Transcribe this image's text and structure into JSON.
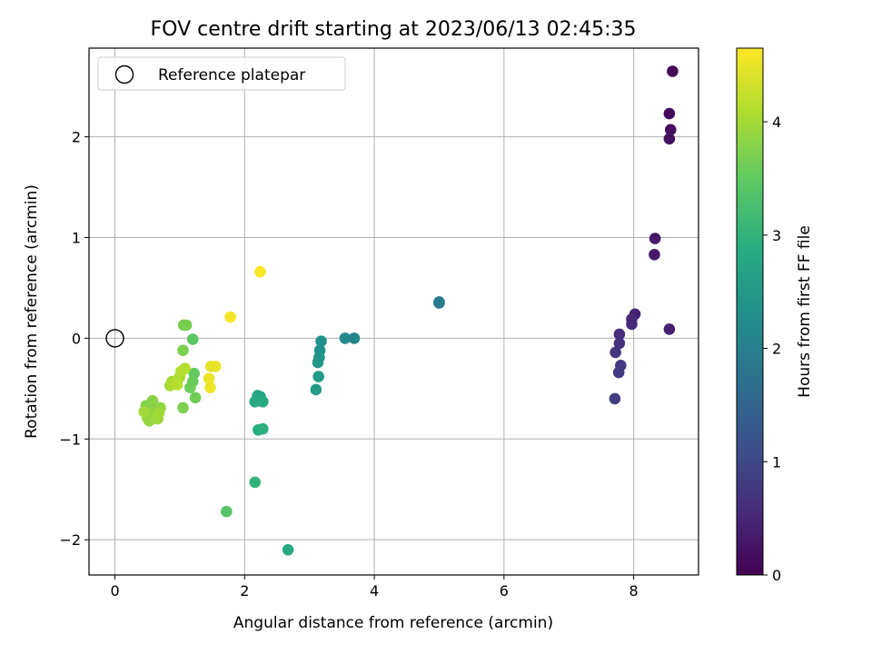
{
  "chart_data": {
    "type": "scatter",
    "title": "FOV centre drift starting at 2023/06/13 02:45:35",
    "xlabel": "Angular distance from reference (arcmin)",
    "ylabel": "Rotation from reference (arcmin)",
    "xlim": [
      -0.4,
      9.0
    ],
    "ylim": [
      -2.35,
      2.88
    ],
    "xticks": [
      0,
      2,
      4,
      6,
      8
    ],
    "xtick_labels": [
      "0",
      "2",
      "4",
      "6",
      "8"
    ],
    "yticks": [
      -2,
      -1,
      0,
      1,
      2
    ],
    "ytick_labels": [
      "−2",
      "−1",
      "0",
      "1",
      "2"
    ],
    "grid": true,
    "legend": {
      "placement": "upper-left",
      "entries": [
        {
          "label": "Reference platepar",
          "marker": "open-circle",
          "x": 0,
          "y": 0
        }
      ]
    },
    "colorbar": {
      "label": "Hours from first FF file",
      "colormap": "viridis",
      "range": [
        0,
        4.65
      ],
      "ticks": [
        0,
        1,
        2,
        3,
        4
      ],
      "tick_labels": [
        "0",
        "1",
        "2",
        "3",
        "4"
      ]
    },
    "points": [
      {
        "x": 8.6,
        "y": 2.65,
        "hours": 0.05
      },
      {
        "x": 8.55,
        "y": 2.23,
        "hours": 0.1
      },
      {
        "x": 8.57,
        "y": 2.07,
        "hours": 0.15
      },
      {
        "x": 8.55,
        "y": 1.98,
        "hours": 0.2
      },
      {
        "x": 8.33,
        "y": 0.99,
        "hours": 0.3
      },
      {
        "x": 8.32,
        "y": 0.83,
        "hours": 0.35
      },
      {
        "x": 8.55,
        "y": 0.09,
        "hours": 0.4
      },
      {
        "x": 8.02,
        "y": 0.24,
        "hours": 0.45
      },
      {
        "x": 7.97,
        "y": 0.19,
        "hours": 0.5
      },
      {
        "x": 7.97,
        "y": 0.14,
        "hours": 0.55
      },
      {
        "x": 7.78,
        "y": 0.04,
        "hours": 0.6
      },
      {
        "x": 7.78,
        "y": -0.05,
        "hours": 0.65
      },
      {
        "x": 7.72,
        "y": -0.14,
        "hours": 0.7
      },
      {
        "x": 7.8,
        "y": -0.27,
        "hours": 0.75
      },
      {
        "x": 7.77,
        "y": -0.34,
        "hours": 0.8
      },
      {
        "x": 7.71,
        "y": -0.6,
        "hours": 0.85
      },
      {
        "x": 5.0,
        "y": 0.35,
        "hours": 1.85
      },
      {
        "x": 5.0,
        "y": 0.36,
        "hours": 1.9
      },
      {
        "x": 3.69,
        "y": 0.0,
        "hours": 2.1
      },
      {
        "x": 3.55,
        "y": 0.0,
        "hours": 2.15
      },
      {
        "x": 3.18,
        "y": -0.03,
        "hours": 2.3
      },
      {
        "x": 3.16,
        "y": -0.12,
        "hours": 2.35
      },
      {
        "x": 3.15,
        "y": -0.19,
        "hours": 2.4
      },
      {
        "x": 3.13,
        "y": -0.24,
        "hours": 2.45
      },
      {
        "x": 3.14,
        "y": -0.38,
        "hours": 2.5
      },
      {
        "x": 3.1,
        "y": -0.51,
        "hours": 2.55
      },
      {
        "x": 2.2,
        "y": -0.57,
        "hours": 2.7
      },
      {
        "x": 2.24,
        "y": -0.58,
        "hours": 2.75
      },
      {
        "x": 2.16,
        "y": -0.63,
        "hours": 2.8
      },
      {
        "x": 2.28,
        "y": -0.63,
        "hours": 2.85
      },
      {
        "x": 2.21,
        "y": -0.91,
        "hours": 2.9
      },
      {
        "x": 2.28,
        "y": -0.9,
        "hours": 2.95
      },
      {
        "x": 2.16,
        "y": -1.43,
        "hours": 3.0
      },
      {
        "x": 2.67,
        "y": -2.1,
        "hours": 2.8
      },
      {
        "x": 1.72,
        "y": -1.72,
        "hours": 3.4
      },
      {
        "x": 1.2,
        "y": -0.01,
        "hours": 3.45
      },
      {
        "x": 1.22,
        "y": -0.35,
        "hours": 3.5
      },
      {
        "x": 1.2,
        "y": -0.43,
        "hours": 3.55
      },
      {
        "x": 1.16,
        "y": -0.49,
        "hours": 3.6
      },
      {
        "x": 1.24,
        "y": -0.59,
        "hours": 3.62
      },
      {
        "x": 1.06,
        "y": 0.13,
        "hours": 3.65
      },
      {
        "x": 1.1,
        "y": 0.13,
        "hours": 3.68
      },
      {
        "x": 1.05,
        "y": -0.12,
        "hours": 3.7
      },
      {
        "x": 1.05,
        "y": -0.69,
        "hours": 3.72
      },
      {
        "x": 0.48,
        "y": -0.67,
        "hours": 3.75
      },
      {
        "x": 0.52,
        "y": -0.7,
        "hours": 3.78
      },
      {
        "x": 0.58,
        "y": -0.62,
        "hours": 3.8
      },
      {
        "x": 0.62,
        "y": -0.72,
        "hours": 3.82
      },
      {
        "x": 0.7,
        "y": -0.69,
        "hours": 3.84
      },
      {
        "x": 0.55,
        "y": -0.75,
        "hours": 3.86
      },
      {
        "x": 0.5,
        "y": -0.79,
        "hours": 3.88
      },
      {
        "x": 0.53,
        "y": -0.82,
        "hours": 3.9
      },
      {
        "x": 0.62,
        "y": -0.78,
        "hours": 3.92
      },
      {
        "x": 0.66,
        "y": -0.8,
        "hours": 3.94
      },
      {
        "x": 0.68,
        "y": -0.74,
        "hours": 3.96
      },
      {
        "x": 0.45,
        "y": -0.73,
        "hours": 3.98
      },
      {
        "x": 0.88,
        "y": -0.43,
        "hours": 4.0
      },
      {
        "x": 0.85,
        "y": -0.47,
        "hours": 4.02
      },
      {
        "x": 0.92,
        "y": -0.45,
        "hours": 4.04
      },
      {
        "x": 0.98,
        "y": -0.4,
        "hours": 4.06
      },
      {
        "x": 1.0,
        "y": -0.38,
        "hours": 4.08
      },
      {
        "x": 1.02,
        "y": -0.33,
        "hours": 4.1
      },
      {
        "x": 1.08,
        "y": -0.3,
        "hours": 4.12
      },
      {
        "x": 0.96,
        "y": -0.46,
        "hours": 4.14
      },
      {
        "x": 1.48,
        "y": -0.28,
        "hours": 4.45
      },
      {
        "x": 1.55,
        "y": -0.28,
        "hours": 4.5
      },
      {
        "x": 1.45,
        "y": -0.4,
        "hours": 4.52
      },
      {
        "x": 1.47,
        "y": -0.49,
        "hours": 4.55
      },
      {
        "x": 1.78,
        "y": 0.21,
        "hours": 4.58
      },
      {
        "x": 2.24,
        "y": 0.66,
        "hours": 4.6
      }
    ]
  }
}
